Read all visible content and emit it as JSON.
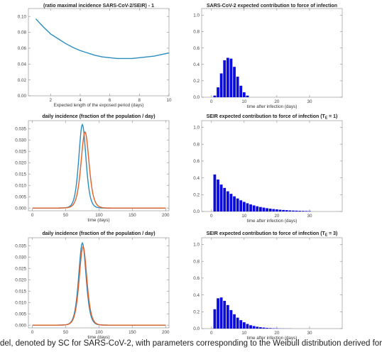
{
  "caption": "del, denoted by SC for SARS-CoV-2, with parameters corresponding to the Weibull distribution derived for",
  "chart_data": [
    {
      "id": "p1",
      "type": "line",
      "title": "(ratio maximal incidence SARS-CoV-2/SEIR) - 1",
      "xlabel": "Expected length of the exposed period (days)",
      "ylabel": "",
      "xlim": [
        0.5,
        10
      ],
      "ylim": [
        0,
        0.11
      ],
      "xticks": [
        2,
        4,
        6,
        8,
        10
      ],
      "yticks": [
        0.0,
        0.02,
        0.04,
        0.06,
        0.08,
        0.1
      ],
      "yformat": 2,
      "series": [
        {
          "color": "#2b8cbe",
          "x": [
            1,
            1.5,
            2,
            2.5,
            3,
            3.5,
            4,
            4.5,
            5,
            5.5,
            6,
            6.5,
            7,
            7.5,
            8,
            8.5,
            9,
            9.5,
            10
          ],
          "y": [
            0.097,
            0.087,
            0.078,
            0.072,
            0.066,
            0.061,
            0.057,
            0.054,
            0.051,
            0.049,
            0.048,
            0.047,
            0.047,
            0.047,
            0.048,
            0.049,
            0.05,
            0.052,
            0.054
          ]
        }
      ]
    },
    {
      "id": "p2",
      "type": "bar",
      "title": "SARS-CoV-2 expected contribution to force of infection",
      "xlabel": "time after infection (days)",
      "ylabel": "",
      "xlim": [
        -3,
        40
      ],
      "ylim": [
        0,
        1.08
      ],
      "xticks": [
        0,
        10,
        20,
        30
      ],
      "yticks": [
        0.0,
        0.2,
        0.4,
        0.6,
        0.8,
        1.0
      ],
      "yformat": 1,
      "bar_color": "#0b0bdc",
      "x": [
        1,
        2,
        3,
        4,
        5,
        6,
        7,
        8,
        9,
        10,
        11
      ],
      "values": [
        0.02,
        0.12,
        0.29,
        0.45,
        0.48,
        0.47,
        0.37,
        0.25,
        0.14,
        0.06,
        0.02
      ]
    },
    {
      "id": "p3",
      "type": "line",
      "title": "daily incidence (fraction of the population / day)",
      "xlabel": "time (days)",
      "ylabel": "",
      "xlim": [
        -6,
        205
      ],
      "ylim": [
        -0.0012,
        0.0385
      ],
      "xticks": [
        0,
        50,
        100,
        150,
        200
      ],
      "yticks": [
        0.0,
        0.005,
        0.01,
        0.015,
        0.02,
        0.025,
        0.03,
        0.035
      ],
      "yformat": 3,
      "series": [
        {
          "color": "#2b8cbe",
          "peak_x": 75,
          "peak_y": 0.0368,
          "width": 7.2
        },
        {
          "color": "#e0602a",
          "peak_x": 79,
          "peak_y": 0.0335,
          "width": 8.0
        }
      ]
    },
    {
      "id": "p4",
      "type": "bar",
      "title": "SEIR expected contribution to force of infection (T",
      "title_sub": "E",
      "title_tail": " = 1)",
      "xlabel": "time after infection (days)",
      "ylabel": "",
      "xlim": [
        -3,
        40
      ],
      "ylim": [
        0,
        1.08
      ],
      "xticks": [
        0,
        10,
        20,
        30
      ],
      "yticks": [
        0.0,
        0.2,
        0.4,
        0.6,
        0.8,
        1.0
      ],
      "yformat": 1,
      "bar_color": "#0b0bdc",
      "x": [
        1,
        2,
        3,
        4,
        5,
        6,
        7,
        8,
        9,
        10,
        11,
        12,
        13,
        14,
        15,
        16,
        17,
        18,
        19,
        20,
        21,
        22,
        23,
        24,
        25,
        26,
        27,
        28,
        29,
        30
      ],
      "values": [
        0.44,
        0.38,
        0.32,
        0.28,
        0.24,
        0.21,
        0.18,
        0.155,
        0.133,
        0.114,
        0.098,
        0.084,
        0.072,
        0.062,
        0.053,
        0.046,
        0.039,
        0.034,
        0.029,
        0.025,
        0.021,
        0.018,
        0.016,
        0.013,
        0.011,
        0.01,
        0.008,
        0.007,
        0.006,
        0.005
      ]
    },
    {
      "id": "p5",
      "type": "line",
      "title": "daily incidence (fraction of the population / day)",
      "xlabel": "time (days)",
      "ylabel": "",
      "xlim": [
        -6,
        205
      ],
      "ylim": [
        -0.0012,
        0.0385
      ],
      "xticks": [
        0,
        50,
        100,
        150,
        200
      ],
      "yticks": [
        0.0,
        0.005,
        0.01,
        0.015,
        0.02,
        0.025,
        0.03,
        0.035
      ],
      "yformat": 3,
      "series": [
        {
          "color": "#2b8cbe",
          "peak_x": 75,
          "peak_y": 0.0362,
          "width": 7.4
        },
        {
          "color": "#e0602a",
          "peak_x": 76,
          "peak_y": 0.0346,
          "width": 7.6
        }
      ]
    },
    {
      "id": "p6",
      "type": "bar",
      "title": "SEIR expected contribution to force of infection (T",
      "title_sub": "E",
      "title_tail": " = 3)",
      "xlabel": "time after infection (days)",
      "ylabel": "",
      "xlim": [
        -3,
        40
      ],
      "ylim": [
        0,
        1.08
      ],
      "xticks": [
        0,
        10,
        20,
        30
      ],
      "yticks": [
        0.0,
        0.2,
        0.4,
        0.6,
        0.8,
        1.0
      ],
      "yformat": 1,
      "bar_color": "#0b0bdc",
      "x": [
        1,
        2,
        3,
        4,
        5,
        6,
        7,
        8,
        9,
        10,
        11,
        12,
        13,
        14,
        15,
        16,
        17,
        18,
        19,
        20,
        21,
        22,
        23,
        24
      ],
      "values": [
        0.23,
        0.36,
        0.37,
        0.33,
        0.28,
        0.22,
        0.17,
        0.13,
        0.1,
        0.075,
        0.055,
        0.04,
        0.03,
        0.022,
        0.016,
        0.012,
        0.008,
        0.006,
        0.004,
        0.003,
        0.002,
        0.0015,
        0.001,
        0.001
      ]
    }
  ]
}
